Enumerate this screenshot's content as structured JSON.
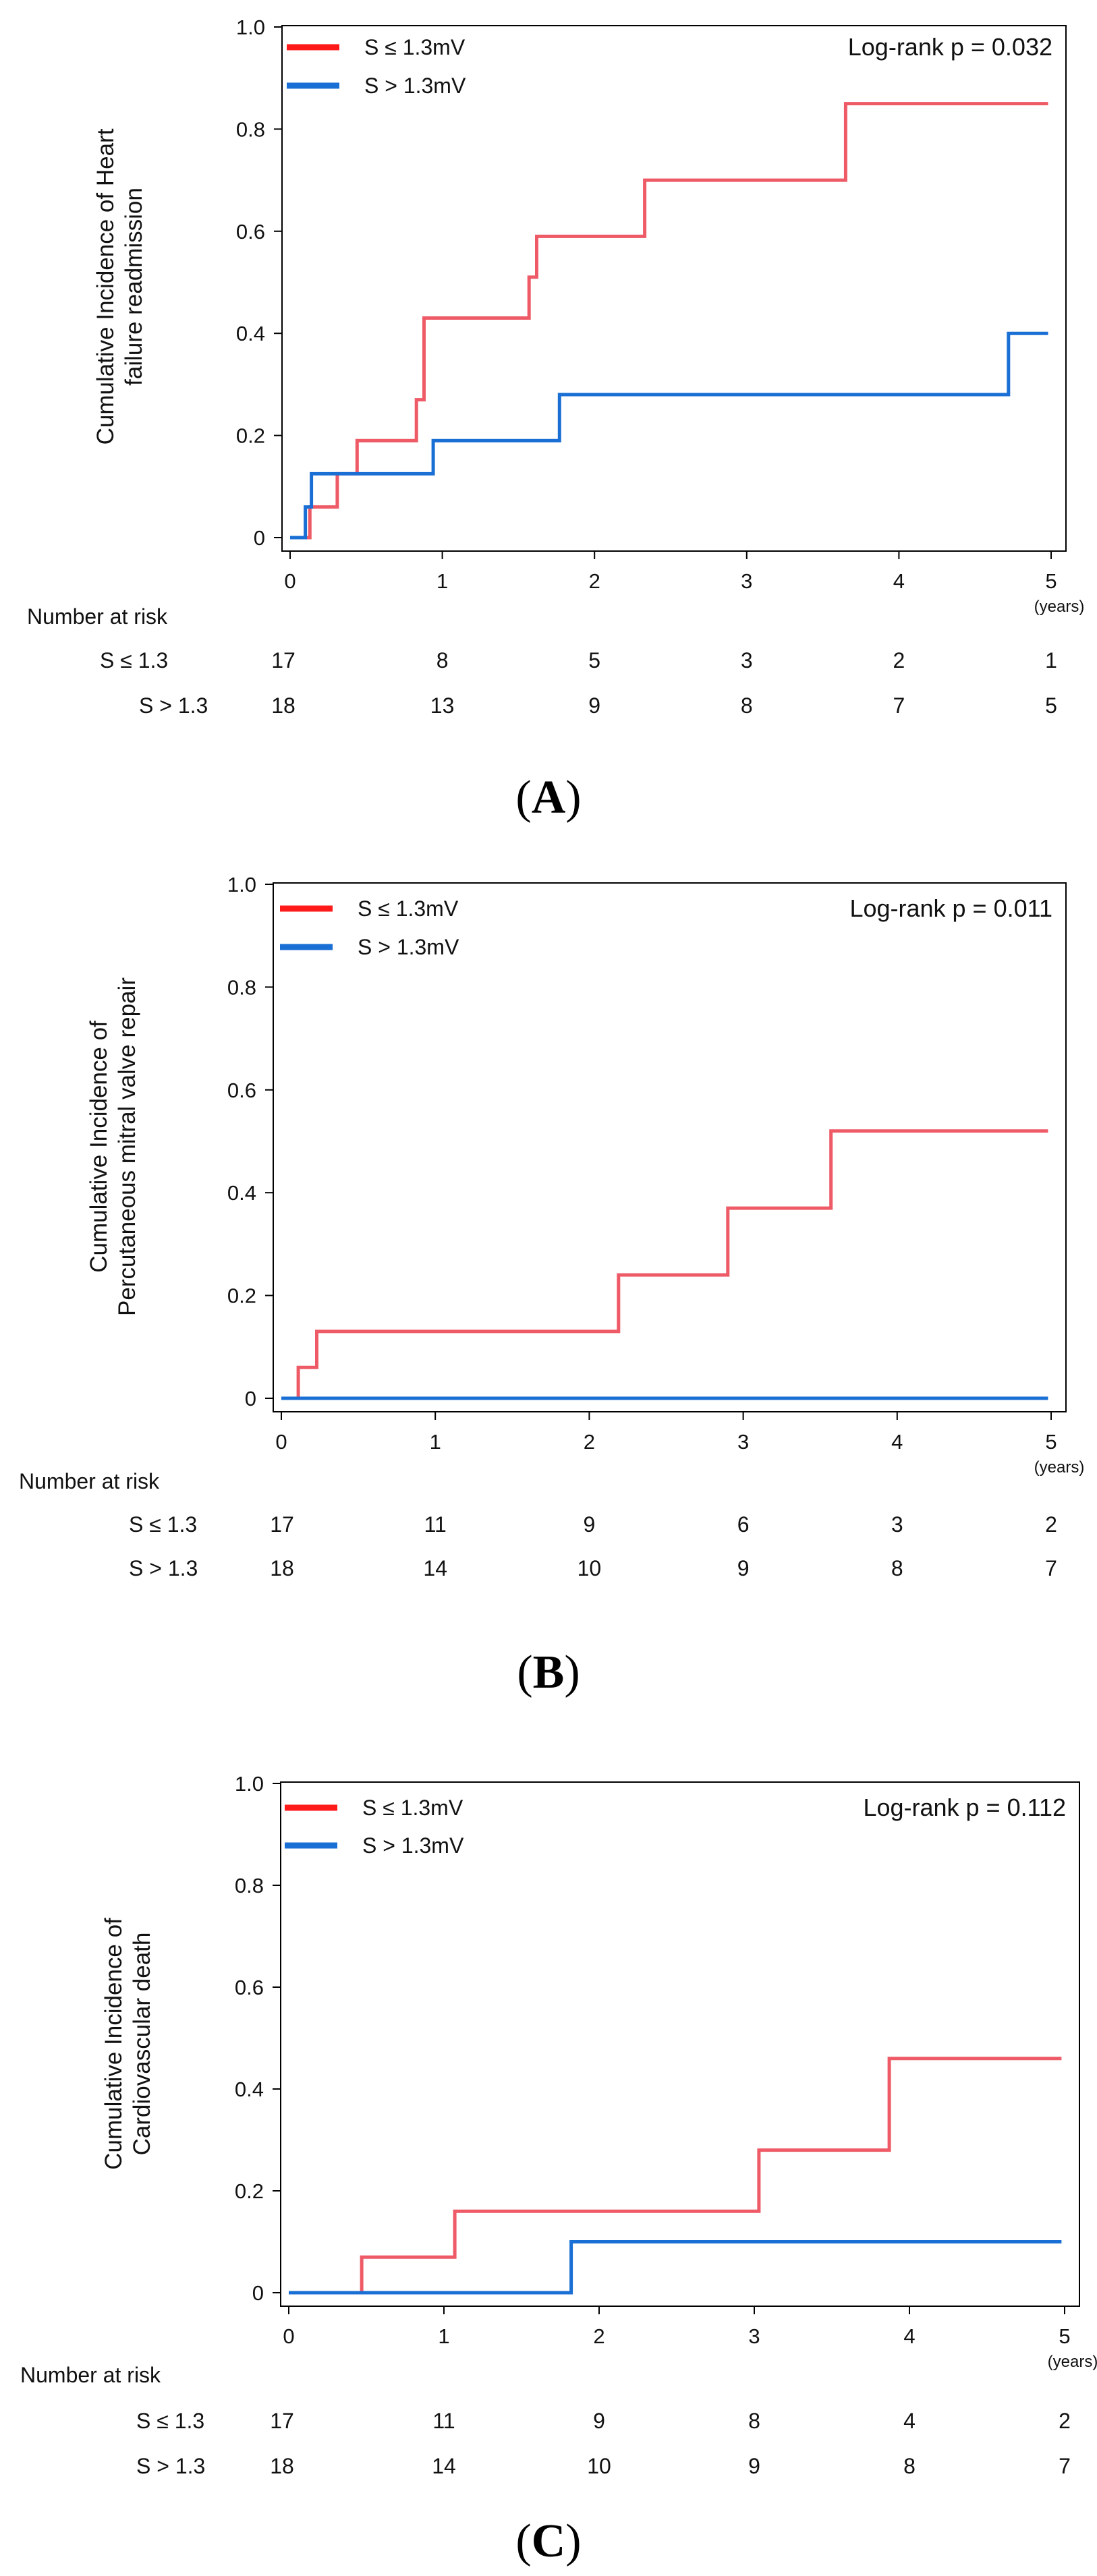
{
  "figure_meta": {
    "years_unit": "(years)",
    "number_at_risk_label": "Number at risk"
  },
  "chart_data": [
    {
      "type": "line",
      "step": true,
      "panel_letter": "A",
      "title": "",
      "ylabel_lines": [
        "Cumulative Incidence of Heart",
        "failure readmission"
      ],
      "xlabel": "(years)",
      "xlim": [
        0,
        5
      ],
      "ylim": [
        0,
        1.0
      ],
      "xticks": [
        0,
        1,
        2,
        3,
        4,
        5
      ],
      "yticks": [
        0,
        0.2,
        0.4,
        0.6,
        0.8,
        1.0
      ],
      "ytick_labels": [
        "0",
        "0.2",
        "0.4",
        "0.6",
        "0.8",
        "1.0"
      ],
      "grid": false,
      "legend_position": "top-left",
      "annotation": "Log-rank p = 0.032",
      "series": [
        {
          "name": "S ≤ 1.3mV",
          "color": "#ee5a66",
          "legend_color": "#ff1a1a",
          "x": [
            0,
            0.13,
            0.13,
            0.31,
            0.31,
            0.44,
            0.44,
            0.83,
            0.83,
            0.88,
            0.88,
            1.57,
            1.57,
            1.62,
            1.62,
            2.33,
            2.33,
            3.65,
            3.65,
            4.98
          ],
          "y": [
            0,
            0,
            0.06,
            0.06,
            0.125,
            0.125,
            0.19,
            0.19,
            0.27,
            0.27,
            0.43,
            0.43,
            0.51,
            0.51,
            0.59,
            0.59,
            0.7,
            0.7,
            0.85,
            0.85
          ]
        },
        {
          "name": "S > 1.3mV",
          "color": "#1a6fd4",
          "legend_color": "#1a6fd4",
          "x": [
            0,
            0.1,
            0.1,
            0.14,
            0.14,
            0.94,
            0.94,
            1.77,
            1.77,
            4.72,
            4.72,
            4.98
          ],
          "y": [
            0,
            0,
            0.06,
            0.06,
            0.125,
            0.125,
            0.19,
            0.19,
            0.28,
            0.28,
            0.4,
            0.4
          ]
        }
      ],
      "number_at_risk": {
        "label": "Number at risk",
        "rows": [
          {
            "group": "S ≤ 1.3",
            "values": [
              "17",
              "8",
              "5",
              "3",
              "2",
              "1"
            ]
          },
          {
            "group": "S > 1.3",
            "values": [
              "18",
              "13",
              "9",
              "8",
              "7",
              "5"
            ]
          }
        ]
      }
    },
    {
      "type": "line",
      "step": true,
      "panel_letter": "B",
      "title": "",
      "ylabel_lines": [
        "Cumulative Incidence of",
        "Percutaneous mitral valve repair"
      ],
      "xlabel": "(years)",
      "xlim": [
        0,
        5
      ],
      "ylim": [
        0,
        1.0
      ],
      "xticks": [
        0,
        1,
        2,
        3,
        4,
        5
      ],
      "yticks": [
        0,
        0.2,
        0.4,
        0.6,
        0.8,
        1.0
      ],
      "ytick_labels": [
        "0",
        "0.2",
        "0.4",
        "0.6",
        "0.8",
        "1.0"
      ],
      "grid": false,
      "legend_position": "top-left",
      "annotation": "Log-rank p = 0.011",
      "series": [
        {
          "name": "S ≤ 1.3mV",
          "color": "#ee5a66",
          "legend_color": "#ff1a1a",
          "x": [
            0,
            0.11,
            0.11,
            0.23,
            0.23,
            2.19,
            2.19,
            2.9,
            2.9,
            3.57,
            3.57,
            4.98
          ],
          "y": [
            0,
            0,
            0.06,
            0.06,
            0.13,
            0.13,
            0.24,
            0.24,
            0.37,
            0.37,
            0.52,
            0.52
          ]
        },
        {
          "name": "S > 1.3mV",
          "color": "#1a6fd4",
          "legend_color": "#1a6fd4",
          "x": [
            0,
            4.98
          ],
          "y": [
            0,
            0
          ]
        }
      ],
      "number_at_risk": {
        "label": "Number at risk",
        "rows": [
          {
            "group": "S ≤ 1.3",
            "values": [
              "17",
              "11",
              "9",
              "6",
              "3",
              "2"
            ]
          },
          {
            "group": "S > 1.3",
            "values": [
              "18",
              "14",
              "10",
              "9",
              "8",
              "7"
            ]
          }
        ]
      }
    },
    {
      "type": "line",
      "step": true,
      "panel_letter": "C",
      "title": "",
      "ylabel_lines": [
        "Cumulative Incidence of",
        "Cardiovascular death"
      ],
      "xlabel": "(years)",
      "xlim": [
        0,
        5
      ],
      "ylim": [
        0,
        1.0
      ],
      "xticks": [
        0,
        1,
        2,
        3,
        4,
        5
      ],
      "yticks": [
        0,
        0.2,
        0.4,
        0.6,
        0.8,
        1.0
      ],
      "ytick_labels": [
        "0",
        "0.2",
        "0.4",
        "0.6",
        "0.8",
        "1.0"
      ],
      "grid": false,
      "legend_position": "top-left",
      "annotation": "Log-rank p = 0.112",
      "series": [
        {
          "name": "S ≤ 1.3mV",
          "color": "#ee5a66",
          "legend_color": "#ff1a1a",
          "x": [
            0,
            0.47,
            0.47,
            1.07,
            1.07,
            3.03,
            3.03,
            3.87,
            3.87,
            4.98
          ],
          "y": [
            0,
            0,
            0.07,
            0.07,
            0.16,
            0.16,
            0.28,
            0.28,
            0.46,
            0.46
          ]
        },
        {
          "name": "S > 1.3mV",
          "color": "#1a6fd4",
          "legend_color": "#1a6fd4",
          "x": [
            0,
            1.82,
            1.82,
            4.98
          ],
          "y": [
            0,
            0,
            0.1,
            0.1
          ]
        }
      ],
      "number_at_risk": {
        "label": "Number at risk",
        "rows": [
          {
            "group": "S ≤ 1.3",
            "values": [
              "17",
              "11",
              "9",
              "8",
              "4",
              "2"
            ]
          },
          {
            "group": "S > 1.3",
            "values": [
              "18",
              "14",
              "10",
              "9",
              "8",
              "7"
            ]
          }
        ]
      }
    }
  ]
}
